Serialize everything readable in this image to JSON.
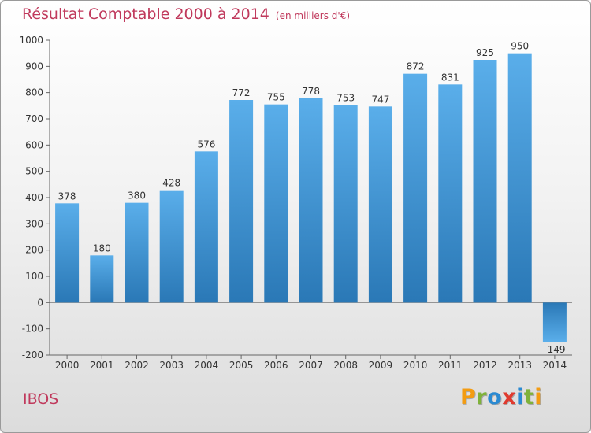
{
  "header": {
    "title": "Résultat Comptable 2000 à 2014",
    "subtitle": "(en milliers d'€)"
  },
  "footer": {
    "commune": "IBOS",
    "brand": [
      "P",
      "r",
      "o",
      "x",
      "i",
      "t",
      "i"
    ]
  },
  "colors": {
    "title": "#c0395c",
    "bar_light": "#5aaeea",
    "bar_dark": "#2a78b6",
    "brand": [
      "#f39c12",
      "#7fb23a",
      "#2a8ad2",
      "#e03a2e",
      "#2a8ad2",
      "#7fb23a",
      "#f39c12"
    ]
  },
  "chart_data": {
    "type": "bar",
    "title": "Résultat Comptable 2000 à 2014",
    "ylabel": "(en milliers d'€)",
    "xlabel": "",
    "categories": [
      "2000",
      "2001",
      "2002",
      "2003",
      "2004",
      "2005",
      "2006",
      "2007",
      "2008",
      "2009",
      "2010",
      "2011",
      "2012",
      "2013",
      "2014"
    ],
    "values": [
      378,
      180,
      380,
      428,
      576,
      772,
      755,
      778,
      753,
      747,
      872,
      831,
      925,
      950,
      -149
    ],
    "ylim": [
      -200,
      1000
    ],
    "yticks": [
      -200,
      -100,
      0,
      100,
      200,
      300,
      400,
      500,
      600,
      700,
      800,
      900,
      1000
    ],
    "grid": false
  }
}
